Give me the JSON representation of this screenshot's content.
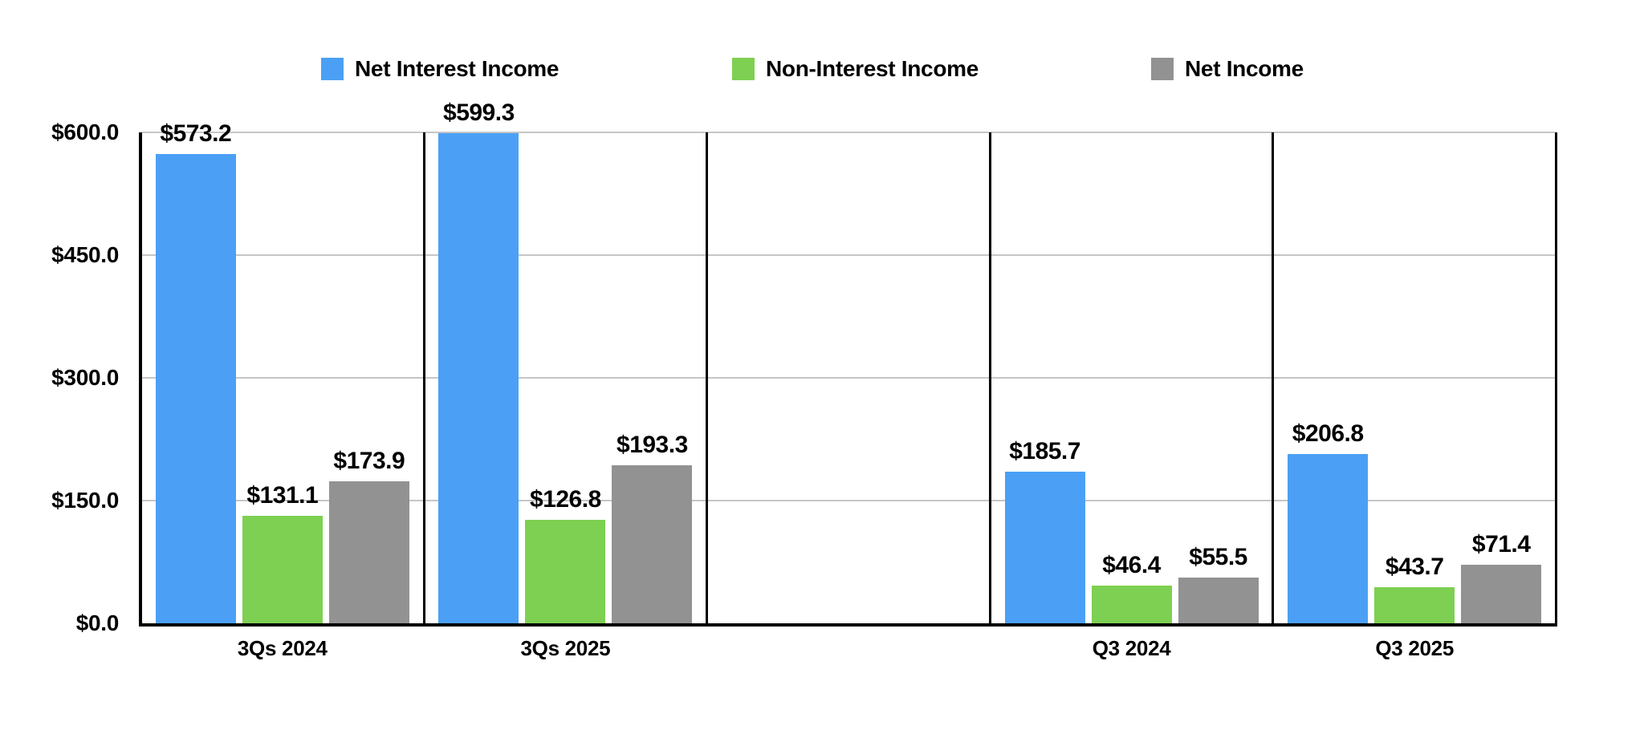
{
  "chart_data": {
    "type": "bar",
    "title": "",
    "categories": [
      "3Qs 2024",
      "3Qs 2025",
      "",
      "Q3 2024",
      "Q3 2025"
    ],
    "series": [
      {
        "name": "Net Interest Income",
        "color": "#4BA0F5",
        "values": [
          573.2,
          599.3,
          null,
          185.7,
          206.8
        ],
        "display_values": [
          "$573.2",
          "$599.3",
          null,
          "$185.7",
          "$206.8"
        ]
      },
      {
        "name": "Non-Interest Income",
        "color": "#7DD052",
        "values": [
          131.1,
          126.8,
          null,
          46.4,
          43.7
        ],
        "display_values": [
          "$131.1",
          "$126.8",
          null,
          "$46.4",
          "$43.7"
        ]
      },
      {
        "name": "Net Income",
        "color": "#929292",
        "values": [
          173.9,
          193.3,
          null,
          55.5,
          71.4
        ],
        "display_values": [
          "$173.9",
          "$193.3",
          null,
          "$55.5",
          "$71.4"
        ]
      }
    ],
    "y_axis": {
      "ticks": [
        "$600.0",
        "$450.0",
        "$300.0",
        "$150.0",
        "$0.0"
      ],
      "tick_values": [
        600,
        450,
        300,
        150,
        0
      ],
      "min": 0,
      "max": 600,
      "interval": 150
    },
    "xlabel": "",
    "ylabel": "",
    "grid": true,
    "legend_position": "top",
    "colors": {
      "grid_line": "#c6c6c6",
      "axis_line": "#000000",
      "background": "#ffffff",
      "text": "#000000"
    }
  }
}
